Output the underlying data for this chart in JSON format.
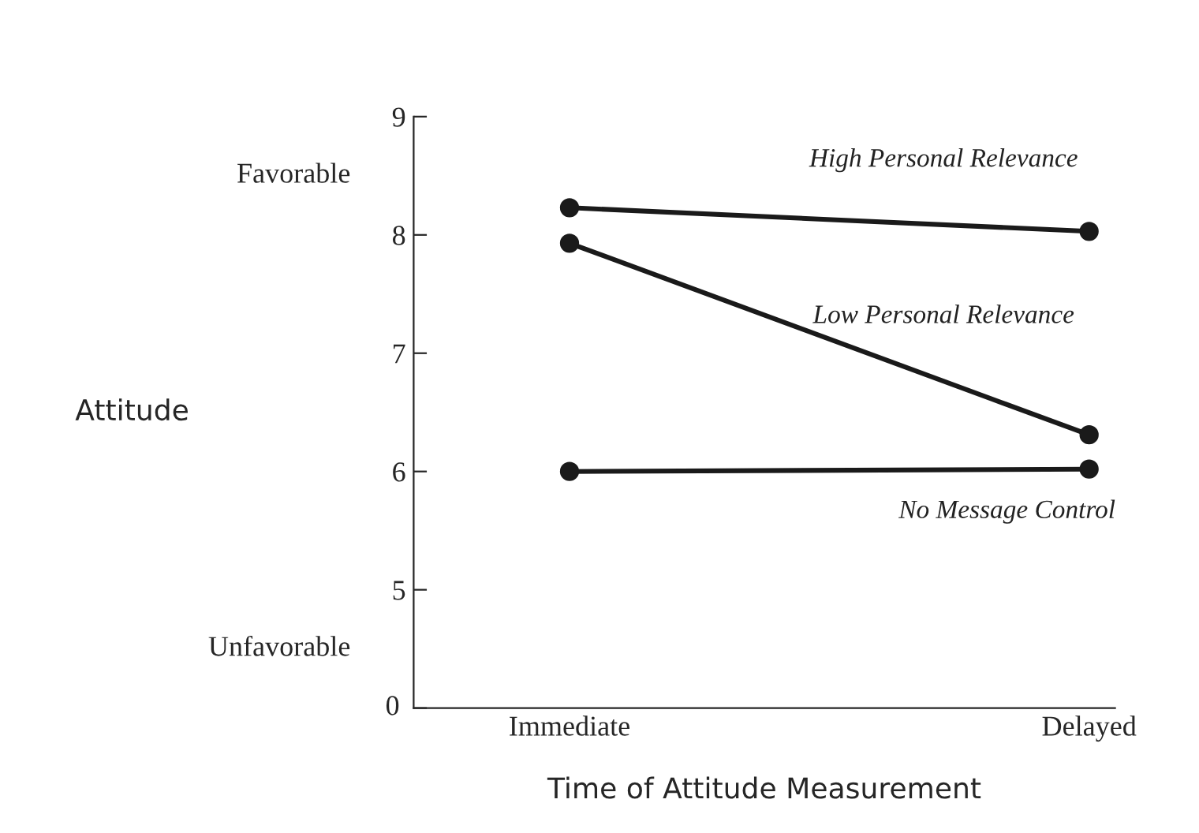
{
  "chart_data": {
    "type": "line",
    "xlabel": "Time of Attitude Measurement",
    "categories": [
      "Immediate",
      "Delayed"
    ],
    "series": [
      {
        "name": "High Personal Relevance",
        "color": "#1a1a1a",
        "values": [
          8.23,
          8.03
        ]
      },
      {
        "name": "Low Personal Relevance",
        "color": "#1a1a1a",
        "values": [
          7.93,
          6.31
        ]
      },
      {
        "name": "No Message Control",
        "color": "#1a1a1a",
        "values": [
          6.0,
          6.02
        ]
      }
    ],
    "ylim": [
      4,
      9
    ],
    "yticks": [
      {
        "value": 4,
        "label": null
      },
      5,
      6,
      7,
      8,
      9
    ],
    "annotations": [
      "Favorable",
      "Attitude",
      "Unfavorable",
      "0"
    ],
    "marker": "circle",
    "line_style": "solid",
    "grid": false,
    "legend": false
  }
}
